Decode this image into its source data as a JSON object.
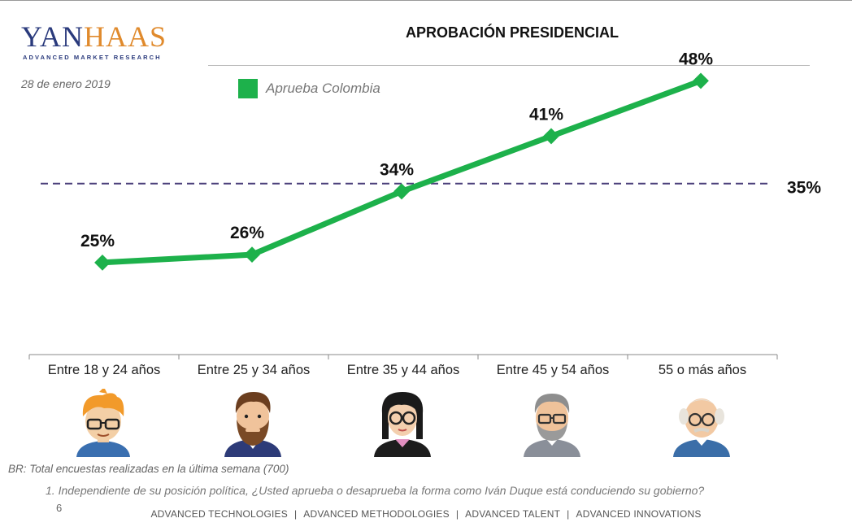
{
  "logo": {
    "text_a": "YAN",
    "text_b": "HAAS",
    "subtitle": "ADVANCED MARKET RESEARCH"
  },
  "date": "28 de enero 2019",
  "title": "APROBACIÓN PRESIDENCIAL",
  "colors": {
    "line": "#1db14b",
    "reference": "#4a3f7a"
  },
  "chart_data": {
    "type": "line",
    "categories": [
      "Entre 18 y 24 años",
      "Entre 25 y 34 años",
      "Entre 35 y 44 años",
      "Entre 45 y 54 años",
      "55 o más años"
    ],
    "series": [
      {
        "name": "Aprueba Colombia",
        "values": [
          25,
          26,
          34,
          41,
          48
        ],
        "labels": [
          "25%",
          "26%",
          "34%",
          "41%",
          "48%"
        ]
      }
    ],
    "reference_line": {
      "value": 35,
      "label": "35%",
      "style": "dashed"
    },
    "ylim": [
      15,
      50
    ],
    "legend": "top-left",
    "grid": false
  },
  "avatars": [
    "young-man-orange-hair-icon",
    "bearded-man-icon",
    "woman-glasses-icon",
    "gray-hair-man-icon",
    "elderly-man-icon"
  ],
  "footnotes": {
    "base": "BR: Total encuestas realizadas en la última semana (700)",
    "question": "1. Independiente de su posición política, ¿Usted aprueba o desaprueba la forma como Iván Duque está conduciendo su gobierno?"
  },
  "page_number": "6",
  "footer": [
    "ADVANCED TECHNOLOGIES",
    "ADVANCED METHODOLOGIES",
    "ADVANCED TALENT",
    "ADVANCED INNOVATIONS"
  ],
  "footer_separator": "|"
}
